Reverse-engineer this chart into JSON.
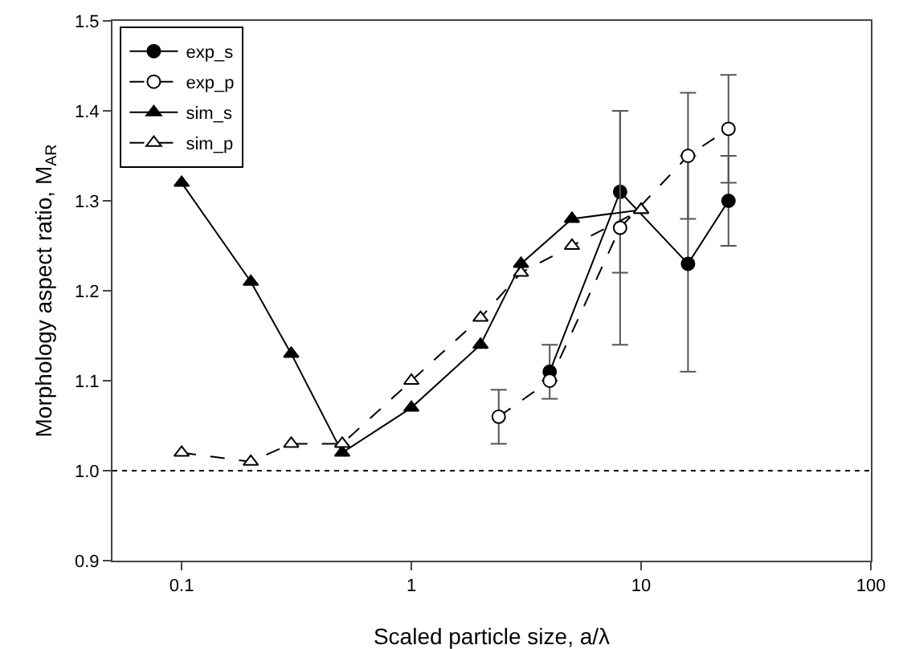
{
  "chart_data": {
    "type": "line",
    "xlabel": "Scaled particle size, a/λ",
    "ylabel": "Morphology aspect ratio, M$_{AR}$",
    "log": "x",
    "xlim": [
      0.05,
      100
    ],
    "xticks": [
      0.1,
      1,
      10,
      100
    ],
    "ylim": [
      0.9,
      1.5
    ],
    "yticks": [
      {
        "value": 0.9,
        "label": "0.9"
      },
      {
        "value": 1.0,
        "label": "1.0"
      },
      {
        "value": 1.1,
        "label": "1.1"
      },
      {
        "value": 1.2,
        "label": "1.2"
      },
      {
        "value": 1.3,
        "label": "1.3"
      },
      {
        "value": 1.4,
        "label": "1.4"
      },
      {
        "value": 1.5,
        "label": "1.5"
      }
    ],
    "grid": false,
    "legend": "top left",
    "series": [
      {
        "name": "exp_s",
        "color": "#000000",
        "marker": "circle",
        "line_style": "solid",
        "x": [
          4,
          8.1,
          16,
          24
        ],
        "values": [
          1.11,
          1.31,
          1.23,
          1.3
        ],
        "errors": [
          [
            1.08,
            1.14
          ],
          [
            1.22,
            1.4
          ],
          [
            1.11,
            1.35
          ],
          [
            1.25,
            1.35
          ]
        ]
      },
      {
        "name": "exp_p",
        "color": "#000000",
        "marker": "circle",
        "line_style": "dashed",
        "x": [
          2.4,
          4,
          8.1,
          16,
          24
        ],
        "values": [
          1.06,
          1.1,
          1.27,
          1.35,
          1.38
        ],
        "errors": [
          [
            1.03,
            1.09
          ],
          null,
          [
            1.14,
            1.4
          ],
          [
            1.28,
            1.42
          ],
          [
            1.32,
            1.44
          ]
        ]
      },
      {
        "name": "sim_s",
        "color": "#000000",
        "marker": "triangle",
        "line_style": "solid",
        "x": [
          0.1,
          0.2,
          0.3,
          0.5,
          1,
          2,
          3,
          5,
          10
        ],
        "values": [
          1.32,
          1.21,
          1.13,
          1.02,
          1.07,
          1.14,
          1.23,
          1.28,
          1.29
        ]
      },
      {
        "name": "sim_p",
        "color": "#000000",
        "marker": "triangle",
        "line_style": "dashed",
        "x": [
          0.1,
          0.2,
          0.3,
          0.5,
          1,
          2,
          3,
          5,
          10
        ],
        "values": [
          1.02,
          1.01,
          1.03,
          1.03,
          1.1,
          1.17,
          1.22,
          1.25,
          1.29
        ]
      }
    ],
    "ref_lines": [
      {
        "axis": "y",
        "value": 1.0,
        "line_style": "dotted",
        "color": "#000000"
      }
    ]
  }
}
